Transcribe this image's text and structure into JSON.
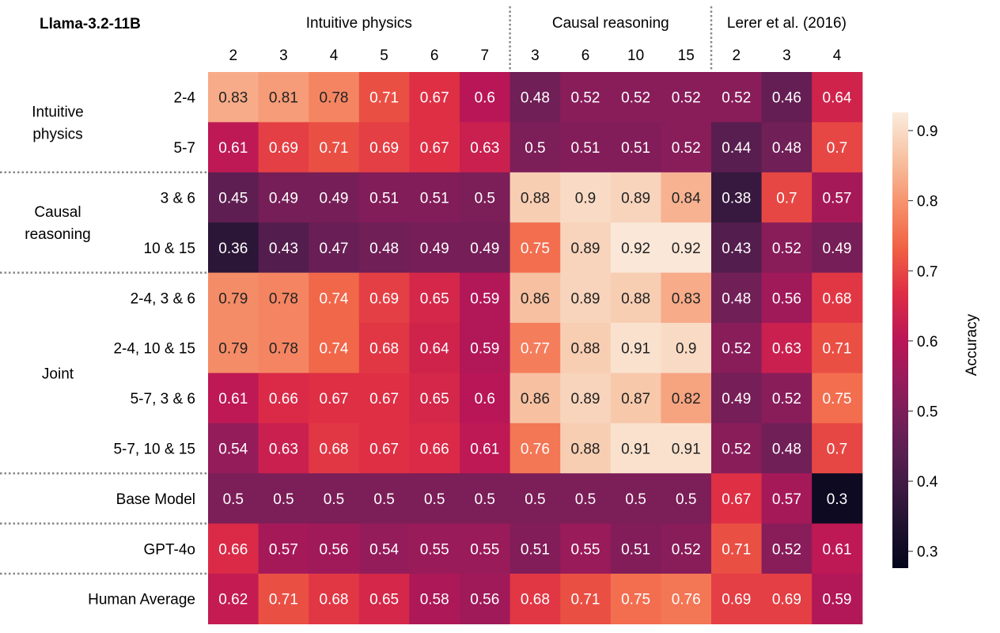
{
  "chart_data": {
    "type": "heatmap",
    "title": "Llama-3.2-11B",
    "column_groups": [
      {
        "label": "Intuitive physics",
        "columns": [
          "2",
          "3",
          "4",
          "5",
          "6",
          "7"
        ]
      },
      {
        "label": "Causal reasoning",
        "columns": [
          "3",
          "6",
          "10",
          "15"
        ]
      },
      {
        "label": "Lerer et al. (2016)",
        "columns": [
          "2",
          "3",
          "4"
        ]
      }
    ],
    "row_groups": [
      {
        "label": "Intuitive\nphysics",
        "rows": [
          "2-4",
          "5-7"
        ]
      },
      {
        "label": "Causal\nreasoning",
        "rows": [
          "3 & 6",
          "10 & 15"
        ]
      },
      {
        "label": "Joint",
        "rows": [
          "2-4, 3 & 6",
          "2-4, 10 & 15",
          "5-7, 3 & 6",
          "5-7, 10 & 15"
        ]
      },
      {
        "label": "",
        "rows": [
          "Base Model"
        ]
      },
      {
        "label": "",
        "rows": [
          "GPT-4o"
        ]
      },
      {
        "label": "",
        "rows": [
          "Human Average"
        ]
      }
    ],
    "values": [
      [
        0.83,
        0.81,
        0.78,
        0.71,
        0.67,
        0.6,
        0.48,
        0.52,
        0.52,
        0.52,
        0.52,
        0.46,
        0.64
      ],
      [
        0.61,
        0.69,
        0.71,
        0.69,
        0.67,
        0.63,
        0.5,
        0.51,
        0.51,
        0.52,
        0.44,
        0.48,
        0.7
      ],
      [
        0.45,
        0.49,
        0.49,
        0.51,
        0.51,
        0.5,
        0.88,
        0.9,
        0.89,
        0.84,
        0.38,
        0.7,
        0.57
      ],
      [
        0.36,
        0.43,
        0.47,
        0.48,
        0.49,
        0.49,
        0.75,
        0.89,
        0.92,
        0.92,
        0.43,
        0.52,
        0.49
      ],
      [
        0.79,
        0.78,
        0.74,
        0.69,
        0.65,
        0.59,
        0.86,
        0.89,
        0.88,
        0.83,
        0.48,
        0.56,
        0.68
      ],
      [
        0.79,
        0.78,
        0.74,
        0.68,
        0.64,
        0.59,
        0.77,
        0.88,
        0.91,
        0.9,
        0.52,
        0.63,
        0.71
      ],
      [
        0.61,
        0.66,
        0.67,
        0.67,
        0.65,
        0.6,
        0.86,
        0.89,
        0.87,
        0.82,
        0.49,
        0.52,
        0.75
      ],
      [
        0.54,
        0.63,
        0.68,
        0.67,
        0.66,
        0.61,
        0.76,
        0.88,
        0.91,
        0.91,
        0.52,
        0.48,
        0.7
      ],
      [
        0.5,
        0.5,
        0.5,
        0.5,
        0.5,
        0.5,
        0.5,
        0.5,
        0.5,
        0.5,
        0.67,
        0.57,
        0.3
      ],
      [
        0.66,
        0.57,
        0.56,
        0.54,
        0.55,
        0.55,
        0.51,
        0.55,
        0.51,
        0.52,
        0.71,
        0.52,
        0.61
      ],
      [
        0.62,
        0.71,
        0.68,
        0.65,
        0.58,
        0.56,
        0.68,
        0.71,
        0.75,
        0.76,
        0.69,
        0.69,
        0.59
      ]
    ],
    "colormap": "rocket",
    "colorbar": {
      "label": "Accuracy",
      "range": [
        0.276,
        0.926
      ],
      "ticks": [
        0.3,
        0.4,
        0.5,
        0.6,
        0.7,
        0.8,
        0.9
      ]
    }
  }
}
